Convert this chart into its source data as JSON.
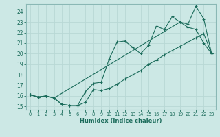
{
  "xlabel": "Humidex (Indice chaleur)",
  "bg_color": "#cce8e5",
  "line_color": "#1a6b5a",
  "grid_color": "#b8d8d5",
  "xlim": [
    -0.5,
    23.5
  ],
  "ylim": [
    14.7,
    24.7
  ],
  "yticks": [
    15,
    16,
    17,
    18,
    19,
    20,
    21,
    22,
    23,
    24
  ],
  "xticks": [
    0,
    1,
    2,
    3,
    4,
    5,
    6,
    7,
    8,
    9,
    10,
    11,
    12,
    13,
    14,
    15,
    16,
    17,
    18,
    19,
    20,
    21,
    22,
    23
  ],
  "line1_x": [
    0,
    1,
    2,
    3,
    4,
    5,
    6,
    7,
    8,
    9,
    10,
    11,
    12,
    13,
    14,
    15,
    16,
    17,
    18,
    19,
    20,
    21,
    22,
    23
  ],
  "line1_y": [
    16.1,
    15.9,
    16.0,
    15.8,
    15.2,
    15.1,
    15.1,
    15.4,
    16.6,
    16.5,
    16.7,
    17.1,
    17.6,
    18.0,
    18.4,
    19.0,
    19.4,
    19.9,
    20.3,
    20.7,
    21.1,
    21.5,
    21.9,
    20.0
  ],
  "line2_x": [
    0,
    1,
    2,
    3,
    4,
    5,
    6,
    7,
    8,
    9,
    10,
    11,
    12,
    13,
    14,
    15,
    16,
    17,
    18,
    19,
    20,
    21,
    22,
    23
  ],
  "line2_y": [
    16.1,
    15.9,
    16.0,
    15.8,
    15.2,
    15.1,
    15.1,
    16.4,
    17.2,
    17.3,
    19.5,
    21.1,
    21.2,
    20.6,
    20.0,
    20.8,
    22.6,
    22.3,
    23.5,
    23.0,
    22.5,
    22.3,
    21.0,
    20.0
  ],
  "line3_x": [
    0,
    1,
    2,
    3,
    19,
    20,
    21,
    22,
    23
  ],
  "line3_y": [
    16.1,
    15.9,
    16.0,
    15.8,
    23.0,
    22.8,
    24.5,
    23.3,
    20.0
  ]
}
